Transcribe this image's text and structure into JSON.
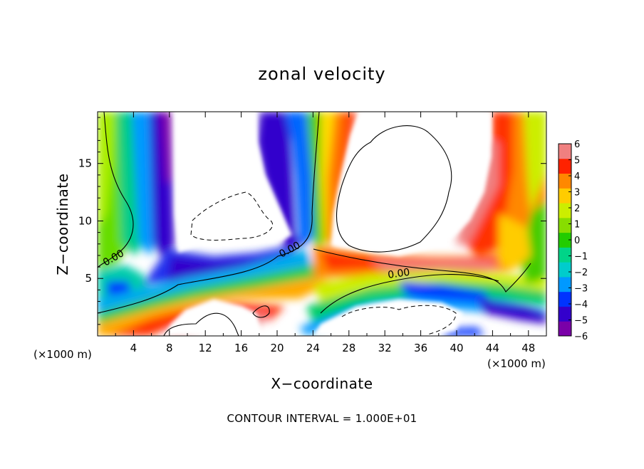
{
  "chart_data": {
    "type": "heatmap",
    "title": "zonal velocity",
    "xlabel": "X−coordinate",
    "ylabel": "Z−coordinate",
    "x_unit": "(×1000 m)",
    "y_unit": "(×1000 m)",
    "xlim": [
      0,
      50
    ],
    "ylim": [
      0,
      19.5
    ],
    "x_ticks": [
      "4",
      "8",
      "12",
      "16",
      "20",
      "24",
      "28",
      "32",
      "36",
      "40",
      "44",
      "48"
    ],
    "y_ticks": [
      "5",
      "10",
      "15"
    ],
    "colorbar": {
      "ticks": [
        "6",
        "5",
        "4",
        "3",
        "2",
        "1",
        "0",
        "−1",
        "−2",
        "−3",
        "−4",
        "−5",
        "−6"
      ],
      "range": [
        -6,
        6
      ],
      "colors": [
        "#7a00a8",
        "#3300cc",
        "#0033ff",
        "#0099ff",
        "#00cccc",
        "#00d488",
        "#22cc00",
        "#88dd00",
        "#ccee00",
        "#ffcc00",
        "#ff8800",
        "#ff2200",
        "#f08080"
      ]
    },
    "contour_label": "0.00",
    "contour_interval_text": "CONTOUR INTERVAL = 1.000E+01"
  }
}
